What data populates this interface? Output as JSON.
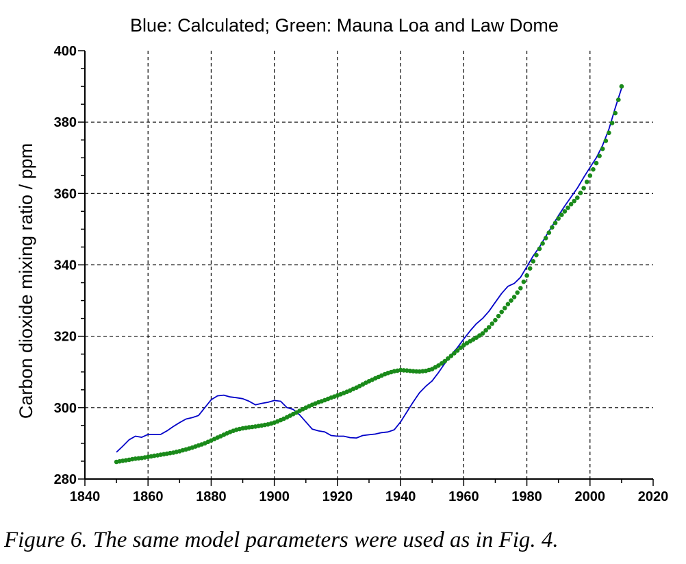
{
  "caption": "Figure 6. The same model parameters were used as in Fig. 4.",
  "chart_data": {
    "type": "line",
    "title": "Blue: Calculated; Green: Mauna Loa and Law Dome",
    "xlabel": "",
    "ylabel": "Carbon dioxide mixing ratio / ppm",
    "xlim": [
      1840,
      2020
    ],
    "ylim": [
      280,
      400
    ],
    "xticks": [
      1840,
      1860,
      1880,
      1900,
      1920,
      1940,
      1960,
      1980,
      2000,
      2020
    ],
    "yticks": [
      280,
      300,
      320,
      340,
      360,
      380,
      400
    ],
    "grid": true,
    "grid_style": "dashed",
    "colors": {
      "calculated": "#0000c8",
      "observed": "#1a8a1a"
    },
    "series": [
      {
        "style": "line",
        "color": "#0000c8",
        "x": [
          1850,
          1852,
          1854,
          1856,
          1858,
          1860,
          1862,
          1864,
          1866,
          1868,
          1870,
          1872,
          1874,
          1876,
          1878,
          1880,
          1882,
          1884,
          1886,
          1888,
          1890,
          1892,
          1894,
          1896,
          1898,
          1900,
          1902,
          1904,
          1906,
          1908,
          1910,
          1912,
          1914,
          1916,
          1918,
          1920,
          1922,
          1924,
          1926,
          1928,
          1930,
          1932,
          1934,
          1936,
          1938,
          1940,
          1942,
          1944,
          1946,
          1948,
          1950,
          1952,
          1954,
          1956,
          1958,
          1960,
          1962,
          1964,
          1966,
          1968,
          1970,
          1972,
          1974,
          1976,
          1978,
          1980,
          1982,
          1984,
          1986,
          1988,
          1990,
          1992,
          1994,
          1996,
          1998,
          2000,
          2002,
          2004,
          2006,
          2008,
          2010
        ],
        "y": [
          287.5,
          289.2,
          291.0,
          292.0,
          291.7,
          292.5,
          292.5,
          292.5,
          293.5,
          294.7,
          295.8,
          296.8,
          297.2,
          297.8,
          300.0,
          302.2,
          303.3,
          303.5,
          303.0,
          302.8,
          302.5,
          301.8,
          300.8,
          301.2,
          301.5,
          302.0,
          301.8,
          300.0,
          299.5,
          298.0,
          296.0,
          294.0,
          293.5,
          293.2,
          292.2,
          292.0,
          292.0,
          291.6,
          291.5,
          292.2,
          292.4,
          292.6,
          293.0,
          293.2,
          293.8,
          296.0,
          298.8,
          301.6,
          304.2,
          306.0,
          307.5,
          309.8,
          312.4,
          314.8,
          316.8,
          319.2,
          321.5,
          323.5,
          325.0,
          327.0,
          329.5,
          332.0,
          334.0,
          334.8,
          336.5,
          339.5,
          342.5,
          345.0,
          348.0,
          350.8,
          353.8,
          356.5,
          359.0,
          361.5,
          364.5,
          367.3,
          370.0,
          373.5,
          378.0,
          384.0,
          389.5
        ]
      },
      {
        "style": "dots",
        "color": "#1a8a1a",
        "x": [
          1850,
          1852,
          1854,
          1856,
          1858,
          1860,
          1862,
          1864,
          1866,
          1868,
          1870,
          1872,
          1874,
          1876,
          1878,
          1880,
          1882,
          1884,
          1886,
          1888,
          1890,
          1892,
          1894,
          1896,
          1898,
          1900,
          1902,
          1904,
          1906,
          1908,
          1910,
          1912,
          1914,
          1916,
          1918,
          1920,
          1922,
          1924,
          1926,
          1928,
          1930,
          1932,
          1934,
          1936,
          1938,
          1940,
          1942,
          1944,
          1946,
          1948,
          1950,
          1952,
          1954,
          1956,
          1958,
          1960,
          1962,
          1964,
          1966,
          1968,
          1970,
          1972,
          1974,
          1976,
          1978,
          1980,
          1982,
          1984,
          1986,
          1988,
          1990,
          1992,
          1994,
          1996,
          1998,
          2000,
          2002,
          2004,
          2006,
          2008,
          2010
        ],
        "y": [
          284.8,
          285.1,
          285.4,
          285.7,
          285.9,
          286.2,
          286.5,
          286.8,
          287.1,
          287.4,
          287.8,
          288.3,
          288.8,
          289.4,
          290.0,
          290.8,
          291.6,
          292.4,
          293.2,
          293.8,
          294.2,
          294.5,
          294.7,
          295.0,
          295.3,
          295.8,
          296.5,
          297.3,
          298.2,
          299.1,
          300.0,
          300.8,
          301.5,
          302.1,
          302.8,
          303.4,
          304.1,
          304.8,
          305.6,
          306.5,
          307.4,
          308.2,
          309.0,
          309.7,
          310.2,
          310.5,
          310.4,
          310.2,
          310.1,
          310.3,
          310.8,
          311.8,
          313.0,
          314.5,
          316.0,
          317.5,
          318.6,
          319.6,
          320.8,
          322.5,
          324.5,
          326.8,
          329.0,
          331.0,
          333.5,
          337.0,
          341.0,
          344.5,
          347.5,
          350.5,
          353.0,
          355.0,
          357.0,
          358.8,
          361.5,
          365.0,
          368.5,
          372.5,
          377.0,
          382.5,
          390.0
        ]
      }
    ]
  }
}
